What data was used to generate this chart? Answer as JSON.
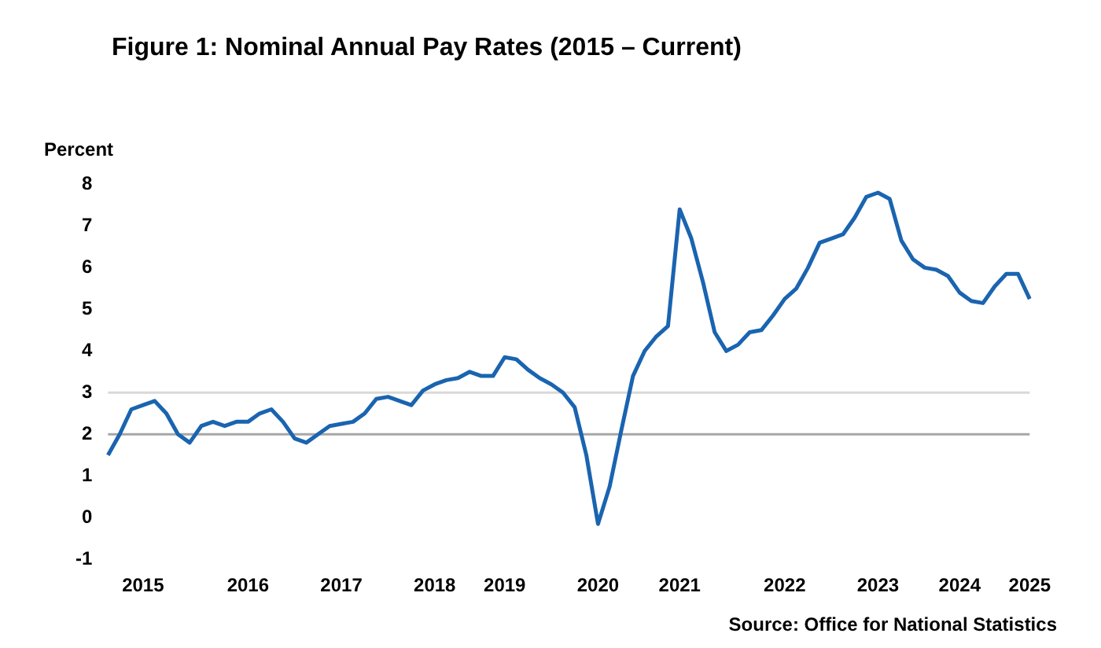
{
  "chart_data": {
    "type": "line",
    "title": "Figure 1: Nominal Annual Pay Rates (2015 – Current)",
    "ylabel": "Percent",
    "annotations": [
      "Source: Office for National Statistics"
    ],
    "categories": [
      null,
      null,
      null,
      "2015",
      null,
      null,
      null,
      null,
      null,
      null,
      null,
      null,
      "2016",
      null,
      null,
      null,
      null,
      null,
      null,
      null,
      "2017",
      null,
      null,
      null,
      null,
      null,
      null,
      null,
      "2018",
      null,
      null,
      null,
      null,
      null,
      "2019",
      null,
      null,
      null,
      null,
      null,
      null,
      null,
      "2020",
      null,
      null,
      null,
      null,
      null,
      null,
      "2021",
      null,
      null,
      null,
      null,
      null,
      null,
      null,
      null,
      "2022",
      null,
      null,
      null,
      null,
      null,
      null,
      null,
      "2023",
      null,
      null,
      null,
      null,
      null,
      null,
      "2024",
      null,
      null,
      null,
      null,
      null,
      "2025"
    ],
    "series": [
      {
        "color": "#1a64b0",
        "values": [
          1.5,
          2.0,
          2.6,
          2.7,
          2.8,
          2.5,
          2.0,
          1.8,
          2.2,
          2.3,
          2.2,
          2.3,
          2.3,
          2.5,
          2.6,
          2.3,
          1.9,
          1.8,
          2.0,
          2.2,
          2.25,
          2.3,
          2.5,
          2.85,
          2.9,
          2.8,
          2.7,
          3.05,
          3.2,
          3.3,
          3.35,
          3.5,
          3.4,
          3.4,
          3.85,
          3.8,
          3.55,
          3.35,
          3.2,
          3.0,
          2.65,
          1.5,
          -0.15,
          0.75,
          2.1,
          3.4,
          4.0,
          4.35,
          4.6,
          7.4,
          6.7,
          5.65,
          4.45,
          4.0,
          4.15,
          4.45,
          4.5,
          4.85,
          5.25,
          5.5,
          6.0,
          6.6,
          6.7,
          6.8,
          7.2,
          7.7,
          7.8,
          7.65,
          6.65,
          6.2,
          6.0,
          5.95,
          5.8,
          5.4,
          5.2,
          5.15,
          5.55,
          5.85,
          5.85,
          5.25
        ]
      }
    ],
    "ylim": [
      -1,
      8
    ],
    "yticks": [
      -1,
      0,
      1,
      2,
      3,
      4,
      5,
      6,
      7,
      8
    ],
    "grid": false,
    "legend": false,
    "marker": "none",
    "line_style": "solid",
    "ref_lines": [
      {
        "axis": "y",
        "value": 3,
        "color": "#d9d9d9"
      },
      {
        "axis": "y",
        "value": 2,
        "color": "#a6a6a6"
      }
    ]
  }
}
